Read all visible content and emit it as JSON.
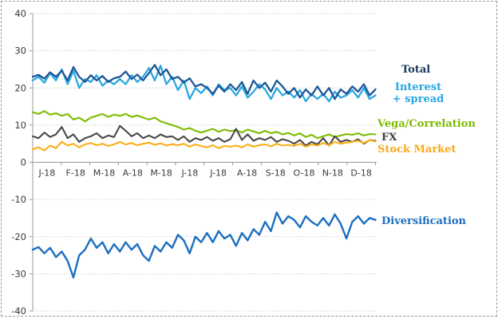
{
  "chart_data": {
    "type": "line",
    "title": "",
    "xlabel": "",
    "ylabel": "",
    "ylim": [
      -40,
      40
    ],
    "y_ticks": [
      40,
      30,
      20,
      10,
      0,
      -10,
      -20,
      -30,
      -40
    ],
    "x_tick_labels": [
      "J-18",
      "F-18",
      "M-18",
      "A-18",
      "M-18",
      "J-18",
      "J-18",
      "A-18",
      "S-18",
      "O-18",
      "N-18",
      "D-18"
    ],
    "grid": "horizontal-dotted",
    "legend_position": "right",
    "legend": {
      "total": "Total",
      "interest_line1": "Interest",
      "interest_line2": "+ spread",
      "vega": "Vega/Correlation",
      "fx": "FX",
      "stock": "Stock Market",
      "diversification": "Diversification"
    },
    "legend_colors": {
      "total": "#17375E",
      "interest": "#25A7E0",
      "vega": "#7DBB00",
      "fx": "#3F3F3F",
      "stock": "#F9A91A",
      "diversification": "#1B6FC1"
    },
    "axis_color": "#9b9b9b",
    "gridline_color": "#c3c3c3",
    "tick_label_color": "#3a3a3a",
    "series": [
      {
        "name": "Total",
        "color": "#1C5796",
        "values": [
          23,
          23.5,
          22.5,
          24.2,
          23,
          24.6,
          22,
          25.6,
          23,
          21.6,
          23.4,
          22,
          23.2,
          21.6,
          22.6,
          23,
          24.4,
          22.4,
          23.6,
          22,
          24,
          26.2,
          23.4,
          25,
          22.4,
          23,
          21.4,
          22.6,
          20.4,
          21,
          20,
          18.4,
          20.6,
          19,
          21,
          19.4,
          21.6,
          18.4,
          22,
          20,
          21.4,
          19,
          22,
          20.4,
          18.4,
          20,
          17.4,
          19.6,
          18,
          20.4,
          18,
          20,
          17,
          19.6,
          18.4,
          20.4,
          19,
          21,
          18,
          19.6
        ]
      },
      {
        "name": "Interest + spread",
        "color": "#29A8E0",
        "values": [
          22,
          23,
          21.4,
          24,
          22,
          25,
          21,
          24.6,
          20,
          22.4,
          21.6,
          23.4,
          20.6,
          22,
          21,
          22.4,
          21,
          23.4,
          21.6,
          23,
          25.4,
          22,
          26,
          21,
          23,
          19.4,
          22,
          17,
          20,
          18.6,
          20.4,
          18,
          21,
          19.4,
          20,
          18,
          20.4,
          17.4,
          19,
          21,
          19.6,
          17,
          20,
          18,
          19,
          17.4,
          19.4,
          16.4,
          18.4,
          17,
          18.4,
          16.4,
          19,
          17.4,
          18,
          19.4,
          17.4,
          20,
          17,
          18
        ]
      },
      {
        "name": "Vega/Correlation",
        "color": "#7DBB00",
        "values": [
          13.5,
          13,
          13.8,
          12.8,
          13.2,
          12.5,
          13,
          11.5,
          12,
          11,
          12,
          12.5,
          13,
          12.2,
          12.8,
          12.5,
          13,
          12.2,
          12.6,
          12,
          11.5,
          12,
          11,
          10.5,
          10,
          9.5,
          8.8,
          9.2,
          8.5,
          8,
          8.5,
          9,
          8.2,
          8.8,
          8.4,
          8.6,
          8,
          8.8,
          8.3,
          7.8,
          8.5,
          7.8,
          8.2,
          7.5,
          7.9,
          7.2,
          7.8,
          6.8,
          7.4,
          6.5,
          7,
          7.5,
          6.8,
          7.2,
          7.6,
          7.4,
          7.8,
          7.2,
          7.6,
          7.5
        ]
      },
      {
        "name": "FX",
        "color": "#474747",
        "values": [
          7,
          6.5,
          8,
          6.8,
          7.5,
          9.5,
          6.5,
          7.5,
          5.5,
          6.5,
          7,
          7.8,
          6.5,
          7.2,
          6.8,
          9.8,
          8.5,
          7,
          7.8,
          6.5,
          7.2,
          6.5,
          7.5,
          6.8,
          7,
          6,
          7,
          5.5,
          6.5,
          6,
          6.8,
          5.8,
          6.5,
          5.5,
          6.2,
          9,
          6,
          7.5,
          5.8,
          6.5,
          6,
          6.8,
          5.5,
          6.2,
          5.8,
          5,
          6,
          4.5,
          5.5,
          4.8,
          6.5,
          4.5,
          7,
          5.5,
          6,
          5.5,
          6.2,
          5,
          6,
          5.8
        ]
      },
      {
        "name": "Stock Market",
        "color": "#FBAE17",
        "values": [
          3.5,
          4,
          3.2,
          4.5,
          3.8,
          5.5,
          4.5,
          5,
          4,
          4.8,
          5.2,
          4.6,
          5,
          4.4,
          4.8,
          5.5,
          4.8,
          5.2,
          4.6,
          5,
          5.3,
          4.7,
          5.1,
          4.5,
          4.9,
          4.6,
          5,
          4.2,
          4.8,
          4.4,
          4,
          4.6,
          3.8,
          4.4,
          4.2,
          4.5,
          4,
          4.8,
          4.2,
          4.6,
          4.8,
          4.3,
          5,
          4.5,
          4.7,
          4.4,
          5,
          4.2,
          4.8,
          4.5,
          5.2,
          4.6,
          5.5,
          5,
          5.3,
          5.5,
          5.8,
          5.2,
          6,
          5.6
        ]
      },
      {
        "name": "Diversification",
        "color": "#1B6FC1",
        "values": [
          -23.5,
          -22.8,
          -24.5,
          -23,
          -25.5,
          -24,
          -26.5,
          -31,
          -25,
          -23.5,
          -20.5,
          -23,
          -21.5,
          -24.5,
          -22,
          -24,
          -21.5,
          -23.5,
          -22,
          -25,
          -26.5,
          -22.5,
          -24,
          -21.5,
          -23,
          -19.5,
          -21,
          -24.5,
          -20,
          -21.5,
          -19,
          -21.5,
          -18.5,
          -20.5,
          -19.5,
          -22.5,
          -19,
          -21,
          -18,
          -19.5,
          -16,
          -18.5,
          -13.5,
          -16.5,
          -14.5,
          -15.5,
          -17.5,
          -14.5,
          -16,
          -17,
          -15,
          -17,
          -14,
          -16.5,
          -20.5,
          -16,
          -14.5,
          -16.5,
          -15,
          -15.5
        ]
      }
    ]
  }
}
